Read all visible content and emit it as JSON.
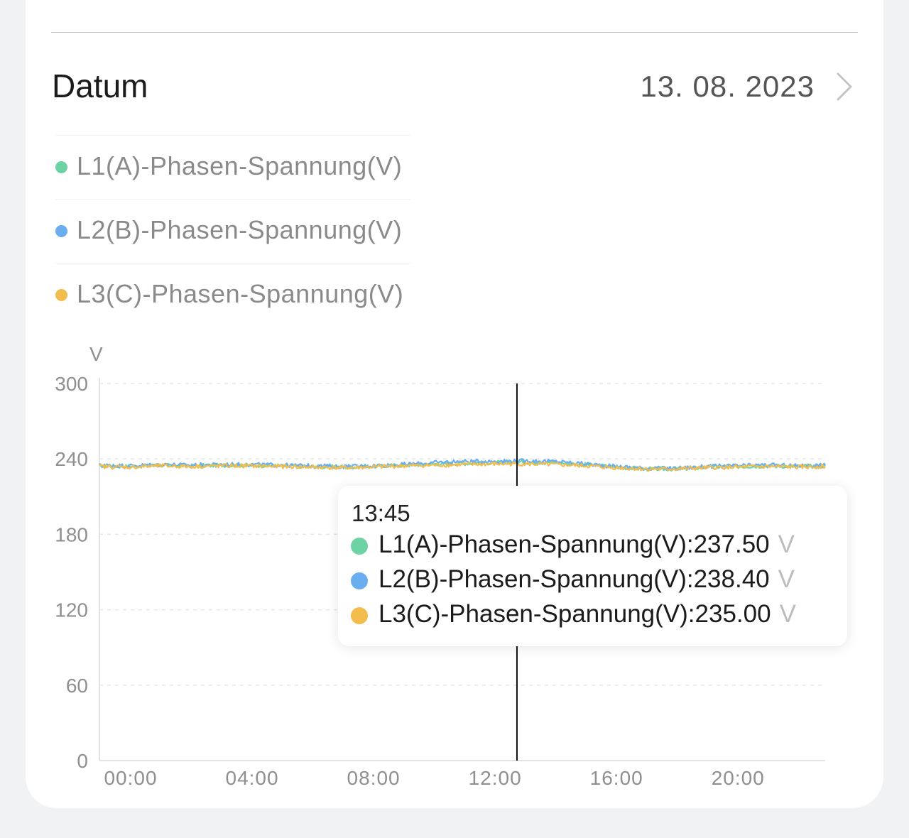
{
  "date_row": {
    "label": "Datum",
    "value": "13. 08. 2023"
  },
  "legend": [
    {
      "label": "L1(A)-Phasen-Spannung(V)",
      "color": "#6ed3a2"
    },
    {
      "label": "L2(B)-Phasen-Spannung(V)",
      "color": "#6aaef0"
    },
    {
      "label": "L3(C)-Phasen-Spannung(V)",
      "color": "#f3bd4d"
    }
  ],
  "tooltip": {
    "time": "13:45",
    "rows": [
      {
        "text": "L1(A)-Phasen-Spannung(V):237.50",
        "unit": "V",
        "color": "#6ed3a2"
      },
      {
        "text": "L2(B)-Phasen-Spannung(V):238.40",
        "unit": "V",
        "color": "#6aaef0"
      },
      {
        "text": "L3(C)-Phasen-Spannung(V):235.00",
        "unit": "V",
        "color": "#f3bd4d"
      }
    ]
  },
  "chart_data": {
    "type": "line",
    "title": "",
    "xlabel": "",
    "ylabel": "V",
    "ylim": [
      0,
      300
    ],
    "xlim_hours": [
      0,
      23.9
    ],
    "grid": true,
    "y_ticks": [
      "0",
      "60",
      "120",
      "180",
      "240",
      "300"
    ],
    "x_ticks": [
      "00:00",
      "04:00",
      "08:00",
      "12:00",
      "16:00",
      "20:00"
    ],
    "crosshair_hour": 13.75,
    "x_hours": [
      0,
      1,
      2,
      3,
      4,
      5,
      6,
      7,
      8,
      9,
      10,
      11,
      12,
      13,
      14,
      15,
      16,
      17,
      18,
      19,
      20,
      21,
      22,
      23,
      23.9
    ],
    "series": [
      {
        "name": "L1(A)-Phasen-Spannung(V)",
        "color": "#6ed3a2",
        "values": [
          234.5,
          234,
          235,
          234.5,
          235,
          235,
          234.5,
          234,
          233.5,
          234,
          235,
          236,
          236.5,
          237,
          237.5,
          237,
          235.5,
          233.5,
          232,
          232,
          233.5,
          234,
          234.5,
          234,
          234.5
        ]
      },
      {
        "name": "L2(B)-Phasen-Spannung(V)",
        "color": "#6aaef0",
        "values": [
          235,
          234.5,
          235.5,
          235,
          235.5,
          235.5,
          235,
          234.5,
          234,
          234.5,
          235.5,
          237,
          238,
          238,
          238.5,
          238,
          236,
          234,
          232.5,
          232.5,
          234,
          234.5,
          235,
          234.5,
          235
        ]
      },
      {
        "name": "L3(C)-Phasen-Spannung(V)",
        "color": "#f3bd4d",
        "values": [
          234,
          233.5,
          234.5,
          234,
          234.5,
          234.5,
          234,
          233.5,
          233,
          233.5,
          234.5,
          235,
          235.5,
          236,
          236,
          235.5,
          234.5,
          233,
          232,
          232,
          233,
          233.5,
          234,
          233.5,
          234
        ]
      }
    ]
  }
}
